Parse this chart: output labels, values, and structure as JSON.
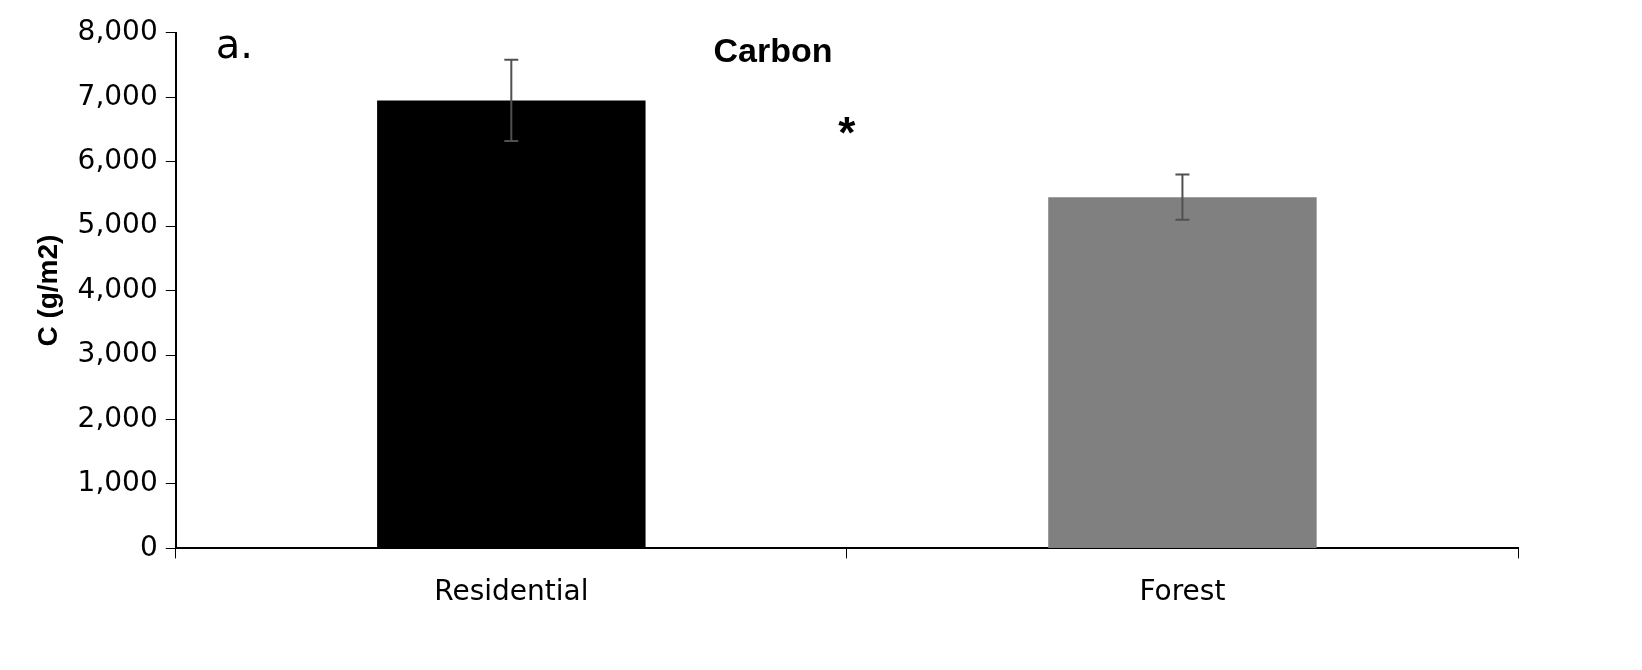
{
  "chart_data": {
    "type": "bar",
    "title": "Carbon",
    "ylabel": "C (g/m2)",
    "categories": [
      "Residential",
      "Forest"
    ],
    "values": [
      6950,
      5450
    ],
    "colors": [
      "#000000",
      "#808080"
    ],
    "errors": [
      630,
      350
    ],
    "ylim": [
      0,
      8000
    ],
    "yticks": [
      {
        "value": 0,
        "label": "0"
      },
      {
        "value": 1000,
        "label": "1,000"
      },
      {
        "value": 2000,
        "label": "2,000"
      },
      {
        "value": 3000,
        "label": "3,000"
      },
      {
        "value": 4000,
        "label": "4,000"
      },
      {
        "value": 5000,
        "label": "5,000"
      },
      {
        "value": 6000,
        "label": "6,000"
      },
      {
        "value": 7000,
        "label": "7,000"
      },
      {
        "value": 8000,
        "label": "8,000"
      }
    ],
    "grid": false,
    "legend": false,
    "annotations": [
      "a.",
      "*"
    ]
  }
}
